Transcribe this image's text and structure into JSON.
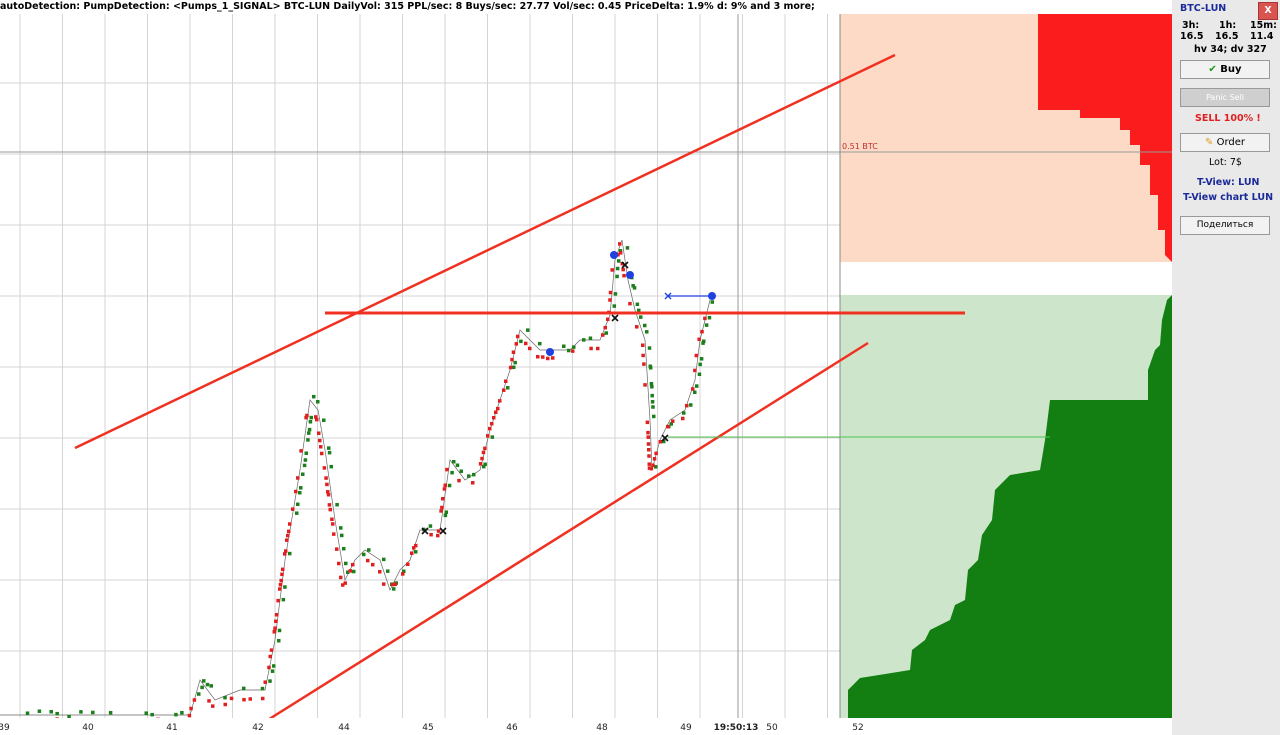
{
  "header": {
    "text": "autoDetection:  PumpDetection: <Pumps_1_SIGNAL> BTC-LUN  DailyVol: 315 PPL/sec: 8  Buys/sec: 27.77 Vol/sec: 0.45 PriceDelta: 1.9%  d: 9% and 3 more;"
  },
  "chart": {
    "price_label": "0.51 BTC",
    "x_labels": [
      "39",
      "40",
      "41",
      "42",
      "44",
      "45",
      "46",
      "48",
      "49",
      "19:50:13",
      "50",
      "52"
    ]
  },
  "panel": {
    "pair": "BTC-LUN",
    "close": "X",
    "periods": [
      "3h:",
      "1h:",
      "15m:"
    ],
    "period_values": [
      "16.5",
      "16.5",
      "11.4"
    ],
    "volume": "hv 34; dv 327",
    "buy": "Buy",
    "panic_sell": "Panic Sell",
    "sell_all": "SELL 100% !",
    "order": "Order",
    "lot": "Lot: 7$",
    "tview": "T-View: LUN",
    "tview_chart": "T-View chart LUN",
    "share": "Поделиться"
  }
}
